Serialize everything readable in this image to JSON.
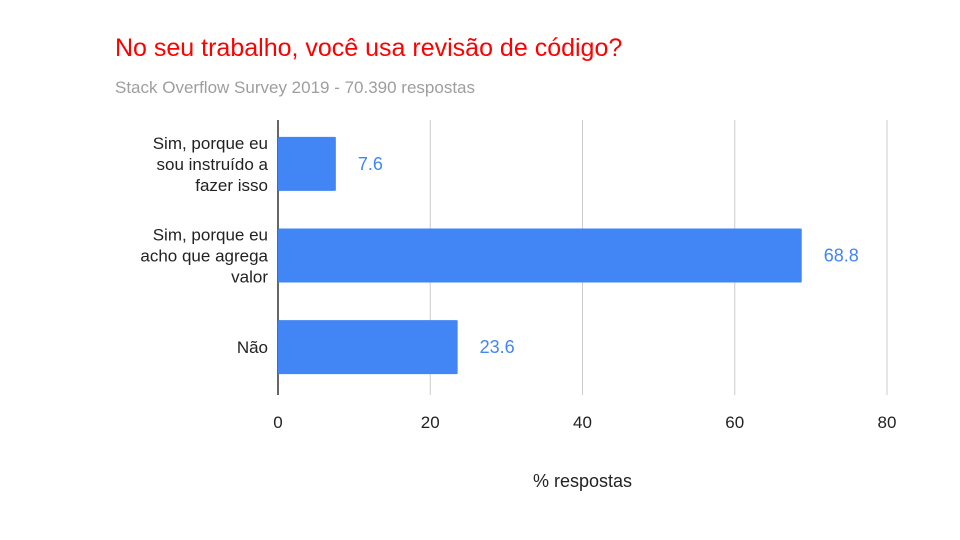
{
  "colors": {
    "title": "#ff0000",
    "subtitle": "#9e9e9e",
    "bar": "#4285f4",
    "data_label": "#4285f4",
    "axis_text": "#222222",
    "grid": "#cccccc",
    "axis_line": "#333333"
  },
  "chart_data": {
    "type": "bar",
    "orientation": "horizontal",
    "title": "No seu trabalho, você usa revisão de código?",
    "subtitle": "Stack Overflow Survey 2019 - 70.390 respostas",
    "categories": [
      [
        "Sim, porque eu",
        "sou instruído a",
        "fazer isso"
      ],
      [
        "Sim, porque eu",
        "acho que agrega",
        "valor"
      ],
      [
        "Não"
      ]
    ],
    "values": [
      7.6,
      68.8,
      23.6
    ],
    "value_labels": [
      "7.6",
      "68.8",
      "23.6"
    ],
    "xlabel": "% respostas",
    "ylabel": "",
    "xlim": [
      0,
      80
    ],
    "xticks": [
      0,
      20,
      40,
      60,
      80
    ],
    "grid": true,
    "legend": "none"
  }
}
